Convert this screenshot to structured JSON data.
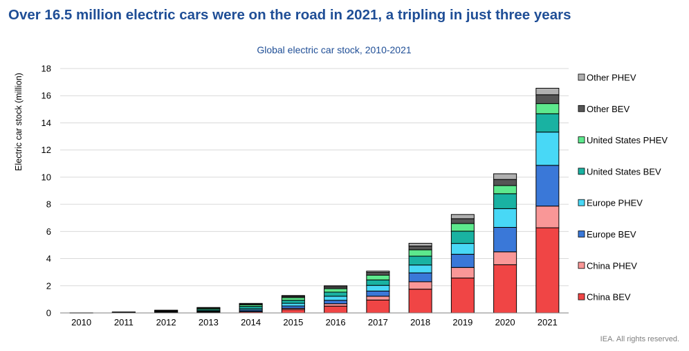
{
  "headline": "Over 16.5 million electric cars were on the road in 2021, a tripling in just three years",
  "footer": "IEA. All rights reserved.",
  "chart_data": {
    "type": "bar",
    "stacked": true,
    "title": "Global electric car stock, 2010-2021",
    "xlabel": "",
    "ylabel": "Electric car stock (million)",
    "ylim": [
      0,
      18
    ],
    "yticks": [
      0,
      2,
      4,
      6,
      8,
      10,
      12,
      14,
      16,
      18
    ],
    "grid": true,
    "legend_position": "right",
    "categories": [
      "2010",
      "2011",
      "2012",
      "2013",
      "2014",
      "2015",
      "2016",
      "2017",
      "2018",
      "2019",
      "2020",
      "2021"
    ],
    "series": [
      {
        "name": "China BEV",
        "color": "#f04545",
        "values": [
          0.01,
          0.02,
          0.03,
          0.05,
          0.08,
          0.25,
          0.5,
          0.95,
          1.75,
          2.57,
          3.55,
          6.27
        ]
      },
      {
        "name": "China PHEV",
        "color": "#f99797",
        "values": [
          0.0,
          0.0,
          0.0,
          0.01,
          0.03,
          0.09,
          0.18,
          0.28,
          0.55,
          0.78,
          0.95,
          1.6
        ]
      },
      {
        "name": "Europe BEV",
        "color": "#3a78d8",
        "values": [
          0.0,
          0.01,
          0.03,
          0.05,
          0.1,
          0.17,
          0.25,
          0.38,
          0.65,
          0.97,
          1.8,
          3.0
        ]
      },
      {
        "name": "Europe PHEV",
        "color": "#48d8f6",
        "values": [
          0.0,
          0.0,
          0.02,
          0.05,
          0.1,
          0.2,
          0.3,
          0.42,
          0.58,
          0.8,
          1.38,
          2.45
        ]
      },
      {
        "name": "United States BEV",
        "color": "#19b2a2",
        "values": [
          0.0,
          0.01,
          0.04,
          0.1,
          0.17,
          0.22,
          0.3,
          0.4,
          0.65,
          0.9,
          1.1,
          1.35
        ]
      },
      {
        "name": "United States PHEV",
        "color": "#5de98d",
        "values": [
          0.0,
          0.02,
          0.05,
          0.08,
          0.12,
          0.2,
          0.26,
          0.35,
          0.47,
          0.57,
          0.6,
          0.75
        ]
      },
      {
        "name": "Other BEV",
        "color": "#555555",
        "values": [
          0.0,
          0.01,
          0.02,
          0.04,
          0.07,
          0.1,
          0.14,
          0.2,
          0.28,
          0.35,
          0.45,
          0.65
        ]
      },
      {
        "name": "Other PHEV",
        "color": "#b0b0b0",
        "values": [
          0.0,
          0.0,
          0.01,
          0.02,
          0.03,
          0.05,
          0.07,
          0.1,
          0.2,
          0.31,
          0.42,
          0.48
        ]
      }
    ]
  }
}
